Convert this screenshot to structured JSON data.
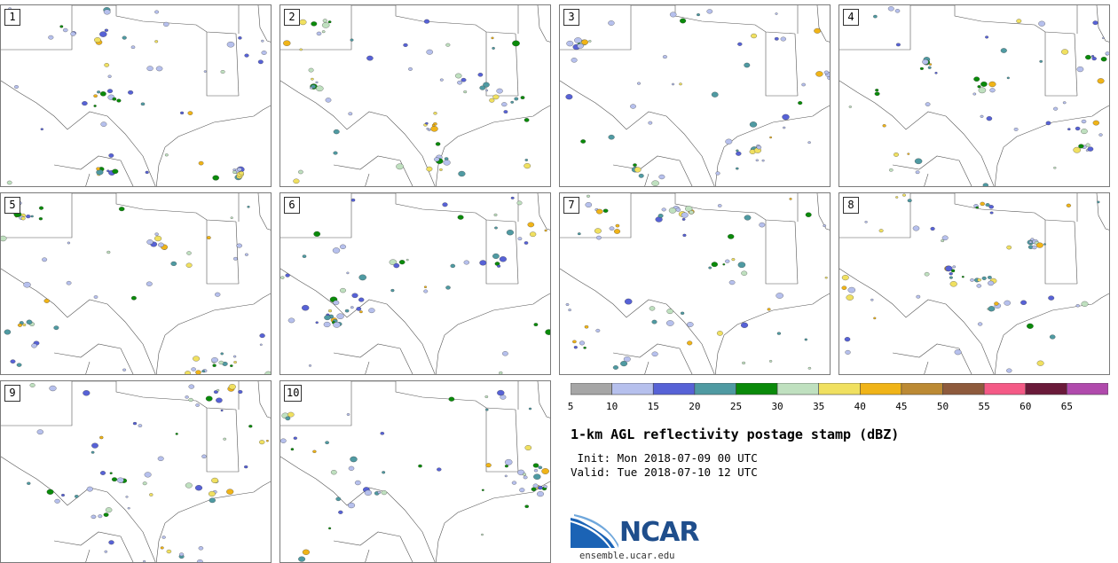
{
  "panels": [
    {
      "label": "1"
    },
    {
      "label": "2"
    },
    {
      "label": "3"
    },
    {
      "label": "4"
    },
    {
      "label": "5"
    },
    {
      "label": "6"
    },
    {
      "label": "7"
    },
    {
      "label": "8"
    },
    {
      "label": "9"
    },
    {
      "label": "10"
    }
  ],
  "colorbar": {
    "colors": [
      "#a6a6a6",
      "#b6c0ed",
      "#5762d6",
      "#4f9aa2",
      "#0a8a0a",
      "#bfe0bf",
      "#f0e060",
      "#f0b418",
      "#bc8a34",
      "#8e5a3c",
      "#f45a86",
      "#6a1a3a",
      "#b04aac"
    ],
    "tick_labels": [
      "5",
      "10",
      "15",
      "20",
      "25",
      "30",
      "35",
      "40",
      "45",
      "50",
      "55",
      "60",
      "65"
    ]
  },
  "title": "1-km AGL reflectivity postage stamp (dBZ)",
  "init": " Init: Mon 2018-07-09 00 UTC",
  "valid": "Valid: Tue 2018-07-10 12 UTC",
  "logo": {
    "text": "NCAR",
    "site": "ensemble.ucar.edu"
  }
}
